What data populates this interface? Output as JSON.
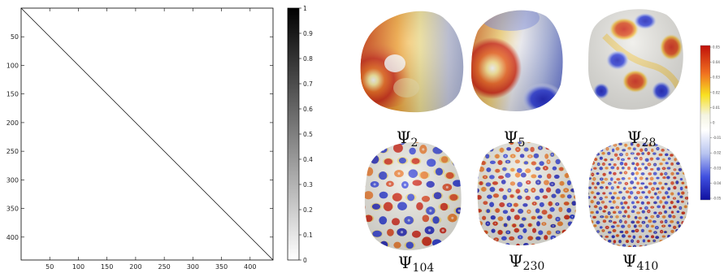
{
  "matrix_plot": {
    "x_ticks": [
      "50",
      "100",
      "150",
      "200",
      "250",
      "300",
      "350",
      "400"
    ],
    "y_ticks": [
      "50",
      "100",
      "150",
      "200",
      "250",
      "300",
      "350",
      "400"
    ],
    "colorbar_ticks": [
      "0",
      "0.1",
      "0.2",
      "0.3",
      "0.4",
      "0.5",
      "0.6",
      "0.7",
      "0.8",
      "0.9",
      "1"
    ]
  },
  "eigenfunctions": {
    "items": [
      {
        "symbol": "Ψ",
        "subscript": "2"
      },
      {
        "symbol": "Ψ",
        "subscript": "5"
      },
      {
        "symbol": "Ψ",
        "subscript": "28"
      },
      {
        "symbol": "Ψ",
        "subscript": "104"
      },
      {
        "symbol": "Ψ",
        "subscript": "230"
      },
      {
        "symbol": "Ψ",
        "subscript": "410"
      }
    ],
    "colorbar_ticks": [
      "0.05",
      "0.04",
      "0.03",
      "0.02",
      "0.01",
      "0",
      "-0.01",
      "-0.02",
      "-0.03",
      "-0.04",
      "-0.05"
    ],
    "colormap": [
      "#c0100a",
      "#f07020",
      "#f8e020",
      "#f0f0d0",
      "#ffffff",
      "#c8d0f0",
      "#4050e0",
      "#1010a0"
    ]
  }
}
